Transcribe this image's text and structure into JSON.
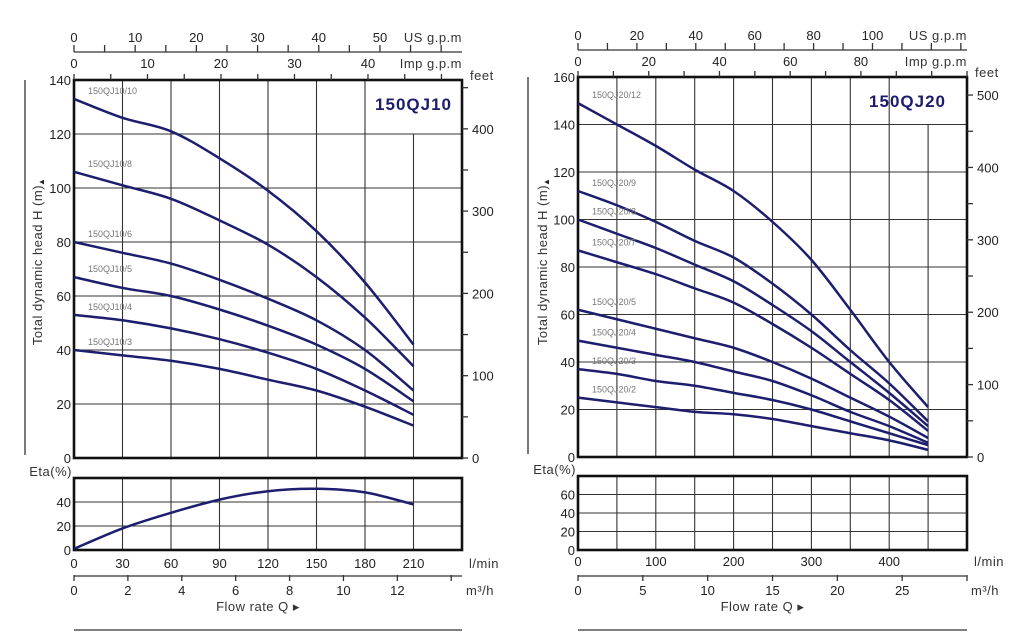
{
  "chart_data": [
    {
      "type": "line",
      "title": "150QJ10",
      "ylabel": "Total dynamic head H (m)",
      "xlabel": "Flow rate  Q ▸",
      "x_unit": "l/min",
      "xlim": [
        0,
        240
      ],
      "ylim": [
        0,
        140
      ],
      "grid": true,
      "x_ticks": [
        0,
        30,
        60,
        90,
        120,
        150,
        180,
        210
      ],
      "y_ticks": [
        0,
        20,
        40,
        60,
        80,
        100,
        120,
        140
      ],
      "right_axis": {
        "label": "feet",
        "ticks": [
          0,
          100,
          200,
          300,
          400
        ]
      },
      "top_axes": [
        {
          "label": "US g.p.m",
          "ticks": [
            0,
            10,
            20,
            30,
            40,
            50
          ]
        },
        {
          "label": "Imp g.p.m",
          "ticks": [
            0,
            10,
            20,
            30,
            40
          ]
        }
      ],
      "bottom_axis2": {
        "label": "m³/h",
        "ticks": [
          0,
          2,
          4,
          6,
          8,
          10,
          12
        ]
      },
      "x": [
        0,
        30,
        60,
        90,
        120,
        150,
        180,
        210
      ],
      "series": [
        {
          "name": "150QJ10/10",
          "values": [
            133,
            126,
            121,
            111,
            99,
            84,
            65,
            42
          ]
        },
        {
          "name": "150QJ10/8",
          "values": [
            106,
            101,
            96,
            88,
            79,
            67,
            52,
            34
          ]
        },
        {
          "name": "150QJ10/6",
          "values": [
            80,
            76,
            72,
            66,
            59,
            51,
            40,
            25
          ]
        },
        {
          "name": "150QJ10/5",
          "values": [
            67,
            63,
            60,
            55,
            49,
            42,
            33,
            21
          ]
        },
        {
          "name": "150QJ10/4",
          "values": [
            53,
            51,
            48,
            44,
            39,
            33,
            25,
            16
          ]
        },
        {
          "name": "150QJ10/3",
          "values": [
            40,
            38,
            36,
            33,
            29,
            25,
            19,
            12
          ]
        }
      ],
      "efficiency": {
        "ylabel": "Eta(%)",
        "ylim": [
          0,
          60
        ],
        "y_ticks": [
          0,
          20,
          40
        ],
        "values": [
          1,
          18,
          31,
          42,
          49,
          51,
          48,
          38
        ]
      }
    },
    {
      "type": "line",
      "title": "150QJ20",
      "ylabel": "Total dynamic head H (m)",
      "xlabel": "Flow rate  Q ▸",
      "x_unit": "l/min",
      "xlim": [
        0,
        500
      ],
      "ylim": [
        0,
        160
      ],
      "grid": true,
      "x_ticks": [
        0,
        100,
        200,
        300,
        400
      ],
      "y_ticks": [
        0,
        20,
        40,
        60,
        80,
        100,
        120,
        140,
        160
      ],
      "right_axis": {
        "label": "feet",
        "ticks": [
          0,
          100,
          200,
          300,
          400,
          500
        ]
      },
      "top_axes": [
        {
          "label": "US g.p.m",
          "ticks": [
            0,
            20,
            40,
            60,
            80,
            100
          ]
        },
        {
          "label": "Imp g.p.m",
          "ticks": [
            0,
            20,
            40,
            60,
            80
          ]
        }
      ],
      "bottom_axis2": {
        "label": "m³/h",
        "ticks": [
          0,
          5,
          10,
          15,
          20,
          25
        ]
      },
      "x": [
        0,
        50,
        100,
        150,
        200,
        250,
        300,
        350,
        400,
        450
      ],
      "series": [
        {
          "name": "150QJ20/12",
          "values": [
            149,
            140,
            131,
            121,
            112,
            99,
            83,
            62,
            40,
            21
          ]
        },
        {
          "name": "150QJ20/9",
          "values": [
            112,
            106,
            99,
            91,
            84,
            73,
            60,
            45,
            31,
            15
          ]
        },
        {
          "name": "150QJ20/8",
          "values": [
            100,
            94,
            88,
            81,
            74,
            64,
            53,
            40,
            27,
            13
          ]
        },
        {
          "name": "150QJ20/7",
          "values": [
            87,
            82,
            77,
            71,
            65,
            56,
            46,
            35,
            24,
            11
          ]
        },
        {
          "name": "150QJ20/5",
          "values": [
            62,
            58,
            54,
            50,
            46,
            40,
            33,
            25,
            17,
            8
          ]
        },
        {
          "name": "150QJ20/4",
          "values": [
            49,
            46,
            43,
            40,
            36,
            32,
            26,
            19,
            13,
            6
          ]
        },
        {
          "name": "150QJ20/3",
          "values": [
            37,
            35,
            32,
            30,
            27,
            24,
            20,
            15,
            10,
            5
          ]
        },
        {
          "name": "150QJ20/2",
          "values": [
            25,
            23,
            21,
            19,
            18,
            16,
            13,
            10,
            7,
            3
          ]
        }
      ],
      "efficiency": {
        "ylabel": "Eta(%)",
        "ylim": [
          0,
          80
        ],
        "y_ticks": [
          0,
          20,
          40,
          60
        ],
        "values": []
      }
    }
  ],
  "colors": {
    "curve": "#1e1e6e",
    "title": "#1c1c6c",
    "grid": "#333333"
  }
}
